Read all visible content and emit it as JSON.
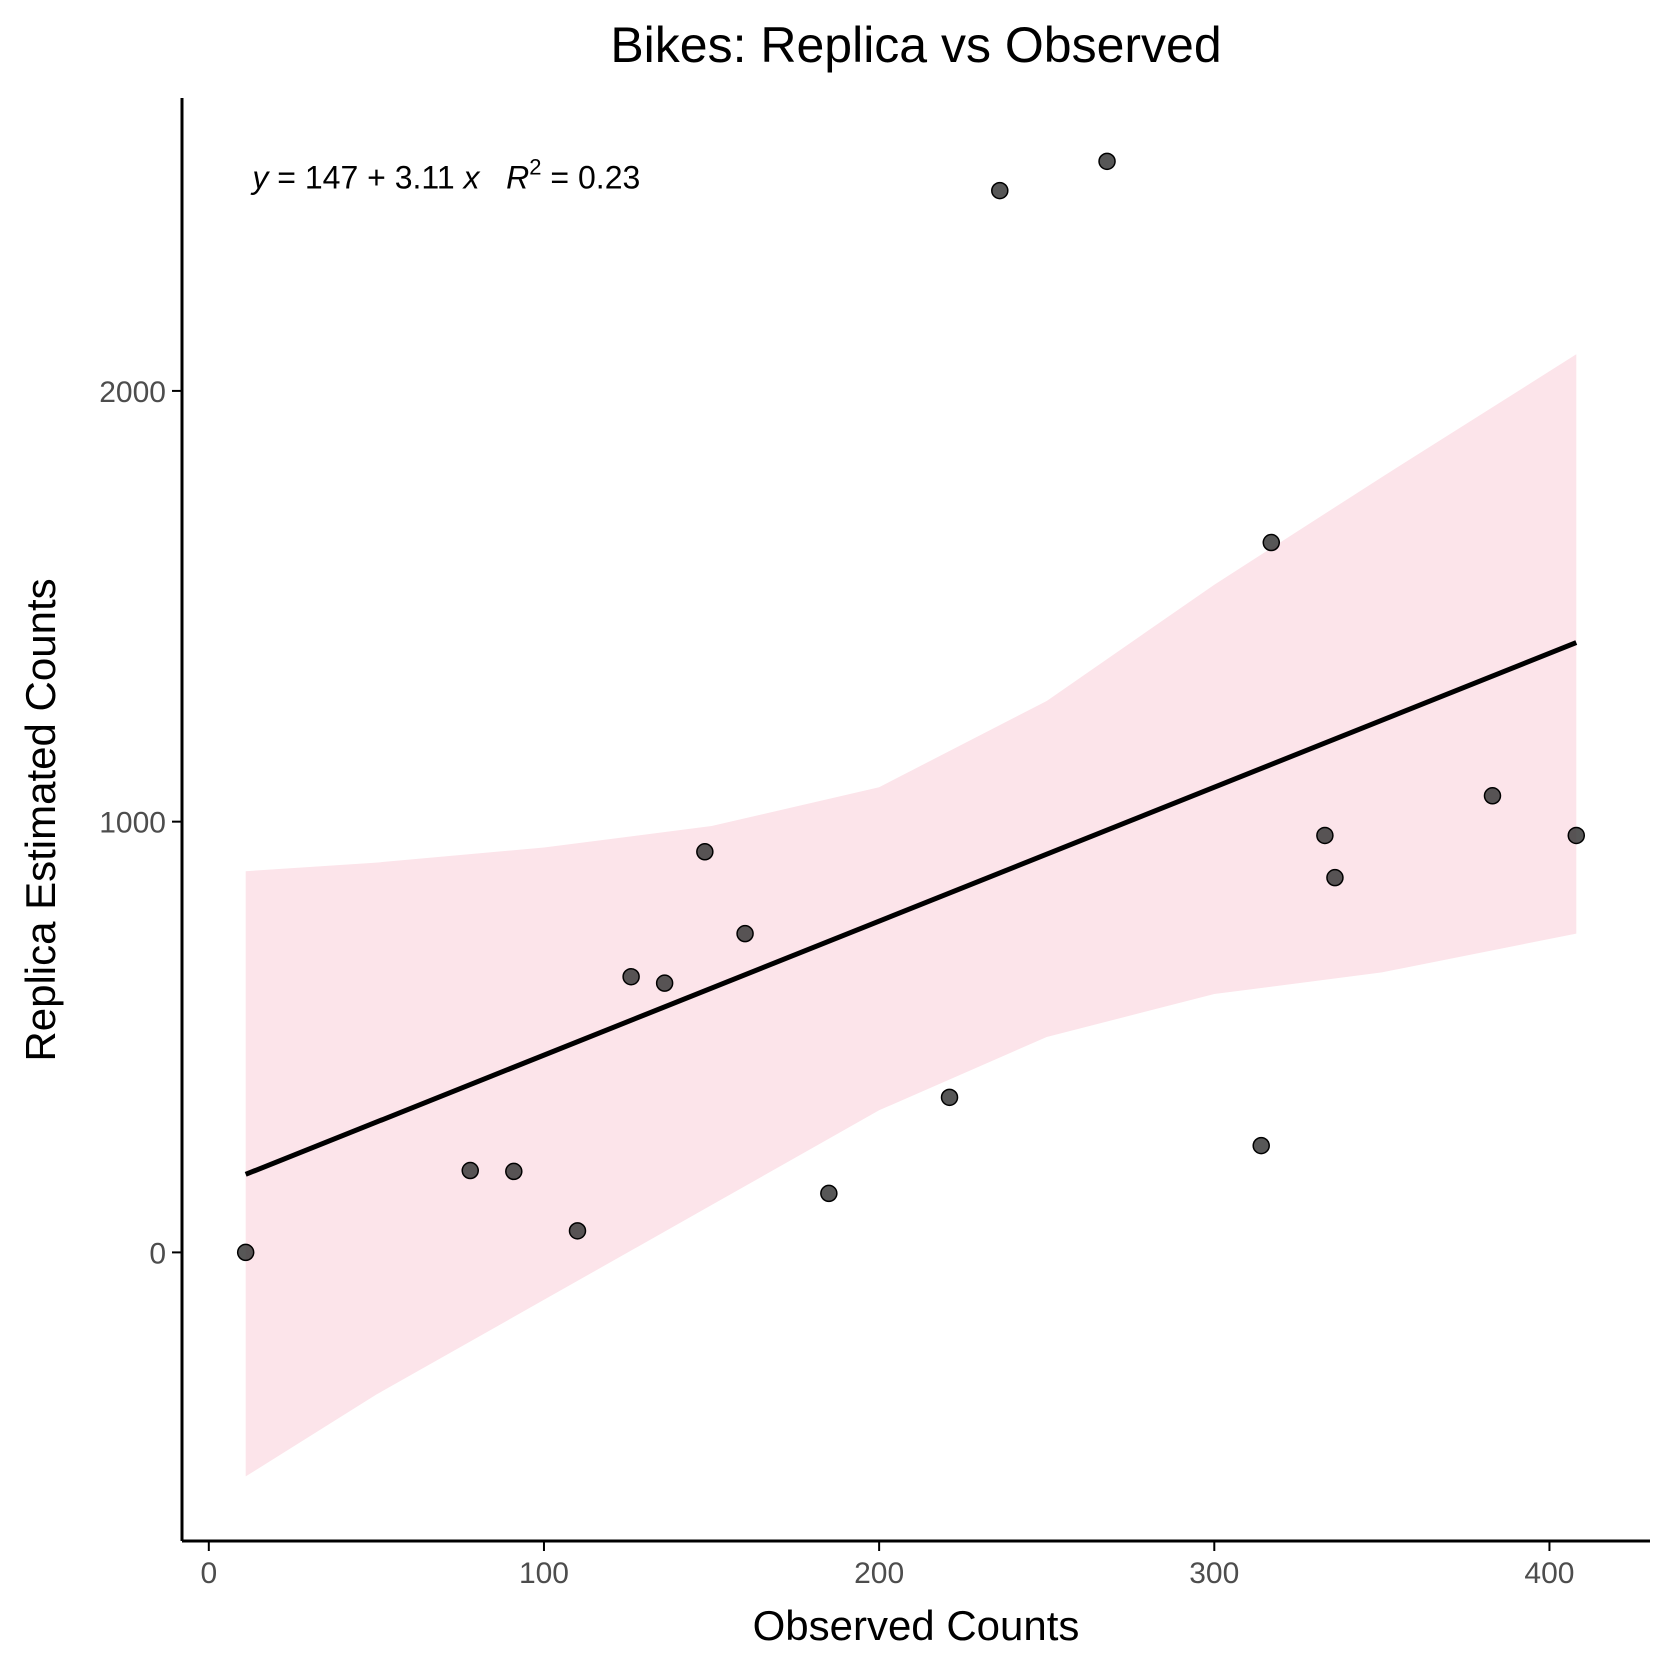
{
  "chart_data": {
    "type": "scatter",
    "title": "Bikes: Replica vs Observed",
    "xlabel": "Observed Counts",
    "ylabel": "Replica Estimated Counts",
    "xlim": [
      -8,
      430
    ],
    "ylim": [
      -670,
      2680
    ],
    "x_ticks": [
      0,
      100,
      200,
      300,
      400
    ],
    "y_ticks": [
      0,
      1000,
      2000
    ],
    "x_tick_labels": [
      "0",
      "100",
      "200",
      "300",
      "400"
    ],
    "y_tick_labels": [
      "0",
      "1000",
      "2000"
    ],
    "grid": false,
    "legend": "none",
    "annotation": {
      "y_var": "y",
      "fit_text": " = 147 + 3.11 ",
      "x_var": "x",
      "r_var": "R",
      "r_sup": "2",
      "r_value": " = 0.23",
      "x": 13,
      "y": 2470
    },
    "points": [
      {
        "x": 11,
        "y": 0
      },
      {
        "x": 78,
        "y": 190
      },
      {
        "x": 91,
        "y": 188
      },
      {
        "x": 110,
        "y": 50
      },
      {
        "x": 126,
        "y": 640
      },
      {
        "x": 136,
        "y": 625
      },
      {
        "x": 148,
        "y": 930
      },
      {
        "x": 160,
        "y": 740
      },
      {
        "x": 185,
        "y": 137
      },
      {
        "x": 221,
        "y": 360
      },
      {
        "x": 236,
        "y": 2465
      },
      {
        "x": 268,
        "y": 2533
      },
      {
        "x": 314,
        "y": 248
      },
      {
        "x": 317,
        "y": 1648
      },
      {
        "x": 333,
        "y": 968
      },
      {
        "x": 336,
        "y": 870
      },
      {
        "x": 383,
        "y": 1060
      },
      {
        "x": 408,
        "y": 968
      }
    ],
    "fit": {
      "intercept": 147,
      "slope": 3.11,
      "x_range": [
        11,
        408
      ]
    },
    "ci_band": {
      "x": [
        11,
        50,
        100,
        150,
        200,
        250,
        300,
        350,
        408
      ],
      "lower": [
        -520,
        -330,
        -110,
        110,
        330,
        500,
        600,
        650,
        740
      ],
      "upper": [
        885,
        905,
        940,
        990,
        1080,
        1280,
        1550,
        1800,
        2085
      ]
    },
    "colors": {
      "points": "#3a3a3a",
      "point_stroke": "#000000",
      "fit_line": "#000000",
      "ci_fill": "#fce4ea",
      "axis": "#000000",
      "tick_label": "#4d4d4d"
    }
  }
}
